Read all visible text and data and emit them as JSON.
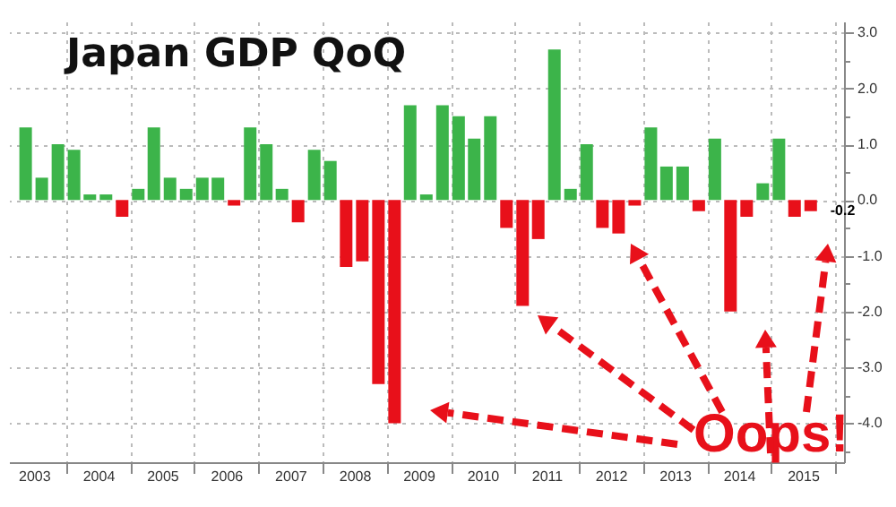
{
  "chart_data": {
    "type": "bar",
    "title": "Japan GDP QoQ",
    "x": [
      "2003-05-15",
      "2003-08-15",
      "2003-11-15",
      "2004-02-15",
      "2004-05-15",
      "2004-08-15",
      "2004-11-15",
      "2005-02-15",
      "2005-05-15",
      "2005-08-15",
      "2005-11-15",
      "2006-02-15",
      "2006-05-15",
      "2006-08-15",
      "2006-11-15",
      "2007-02-15",
      "2007-05-15",
      "2007-08-15",
      "2007-11-15",
      "2008-02-15",
      "2008-05-15",
      "2008-08-15",
      "2008-11-15",
      "2009-02-15",
      "2009-05-15",
      "2009-08-15",
      "2009-11-15",
      "2010-02-15",
      "2010-05-15",
      "2010-08-15",
      "2010-11-15",
      "2011-02-15",
      "2011-05-15",
      "2011-08-15",
      "2011-11-15",
      "2012-02-15",
      "2012-05-15",
      "2012-08-15",
      "2012-11-15",
      "2013-02-15",
      "2013-05-15",
      "2013-08-15",
      "2013-11-15",
      "2014-02-15",
      "2014-05-15",
      "2014-08-15",
      "2014-11-15",
      "2015-02-15",
      "2015-05-15",
      "2015-08-15"
    ],
    "values": [
      1.3,
      0.4,
      1.0,
      0.9,
      0.1,
      0.1,
      -0.3,
      0.2,
      1.3,
      0.4,
      0.2,
      0.4,
      0.4,
      -0.1,
      1.3,
      1.0,
      0.2,
      -0.4,
      0.9,
      0.7,
      -1.2,
      -1.1,
      -3.3,
      -4.0,
      1.7,
      0.1,
      1.7,
      1.5,
      1.1,
      1.5,
      -0.5,
      -1.9,
      -0.7,
      2.7,
      0.2,
      1.0,
      -0.5,
      -0.6,
      -0.1,
      1.3,
      0.6,
      0.6,
      -0.2,
      1.1,
      -2.0,
      -0.3,
      0.3,
      1.1,
      -0.3,
      -0.2
    ],
    "colors": [
      "#3cb44a",
      "#3cb44a",
      "#3cb44a",
      "#3cb44a",
      "#3cb44a",
      "#3cb44a",
      "#e8101a",
      "#3cb44a",
      "#3cb44a",
      "#3cb44a",
      "#3cb44a",
      "#3cb44a",
      "#3cb44a",
      "#e8101a",
      "#3cb44a",
      "#3cb44a",
      "#3cb44a",
      "#e8101a",
      "#3cb44a",
      "#3cb44a",
      "#e8101a",
      "#e8101a",
      "#e8101a",
      "#e8101a",
      "#3cb44a",
      "#3cb44a",
      "#3cb44a",
      "#3cb44a",
      "#3cb44a",
      "#3cb44a",
      "#e8101a",
      "#e8101a",
      "#e8101a",
      "#3cb44a",
      "#3cb44a",
      "#3cb44a",
      "#e8101a",
      "#e8101a",
      "#e8101a",
      "#3cb44a",
      "#3cb44a",
      "#3cb44a",
      "#e8101a",
      "#3cb44a",
      "#e8101a",
      "#e8101a",
      "#3cb44a",
      "#3cb44a",
      "#e8101a",
      "#e8101a"
    ],
    "xlim": [
      "2003-04",
      "2016"
    ],
    "xticks": [
      {
        "value": "2003-07",
        "label": "2003"
      },
      {
        "value": "2004",
        "label": null
      },
      {
        "value": "2004-07",
        "label": "2004"
      },
      {
        "value": "2005",
        "label": null
      },
      {
        "value": "2005-07",
        "label": "2005"
      },
      {
        "value": "2006",
        "label": null
      },
      {
        "value": "2006-07",
        "label": "2006"
      },
      {
        "value": "2007",
        "label": null
      },
      {
        "value": "2007-07",
        "label": "2007"
      },
      {
        "value": "2008",
        "label": null
      },
      {
        "value": "2008-07",
        "label": "2008"
      },
      {
        "value": "2009",
        "label": null
      },
      {
        "value": "2009-07",
        "label": "2009"
      },
      {
        "value": "2010",
        "label": null
      },
      {
        "value": "2010-07",
        "label": "2010"
      },
      {
        "value": "2011",
        "label": null
      },
      {
        "value": "2011-07",
        "label": "2011"
      },
      {
        "value": "2012",
        "label": null
      },
      {
        "value": "2012-07",
        "label": "2012"
      },
      {
        "value": "2013",
        "label": null
      },
      {
        "value": "2013-07",
        "label": "2013"
      },
      {
        "value": "2014",
        "label": null
      },
      {
        "value": "2014-07",
        "label": "2014"
      },
      {
        "value": "2015",
        "label": null
      },
      {
        "value": "2015-07",
        "label": "2015"
      },
      {
        "value": "2016",
        "label": null
      }
    ],
    "ylim": [
      -4.7,
      3.2
    ],
    "yticks": [
      {
        "value": -4.5,
        "label": null
      },
      {
        "value": -4,
        "label": "-4.0"
      },
      {
        "value": -3.5,
        "label": null
      },
      {
        "value": -3,
        "label": "-3.0"
      },
      {
        "value": -2.5,
        "label": null
      },
      {
        "value": -2,
        "label": "-2.0"
      },
      {
        "value": -1.5,
        "label": null
      },
      {
        "value": -1,
        "label": "-1.0"
      },
      {
        "value": -0.5,
        "label": null
      },
      {
        "value": 0,
        "label": "0.0"
      },
      {
        "value": 0.5,
        "label": null
      },
      {
        "value": 1,
        "label": "1.0"
      },
      {
        "value": 1.5,
        "label": null
      },
      {
        "value": 2,
        "label": "2.0"
      },
      {
        "value": 2.5,
        "label": null
      },
      {
        "value": 3,
        "label": "3.0"
      }
    ],
    "grid": true,
    "annotations": [
      {
        "text": "-0.2",
        "x": "2015-08-15",
        "y": -0.2
      },
      "Oops!"
    ]
  }
}
